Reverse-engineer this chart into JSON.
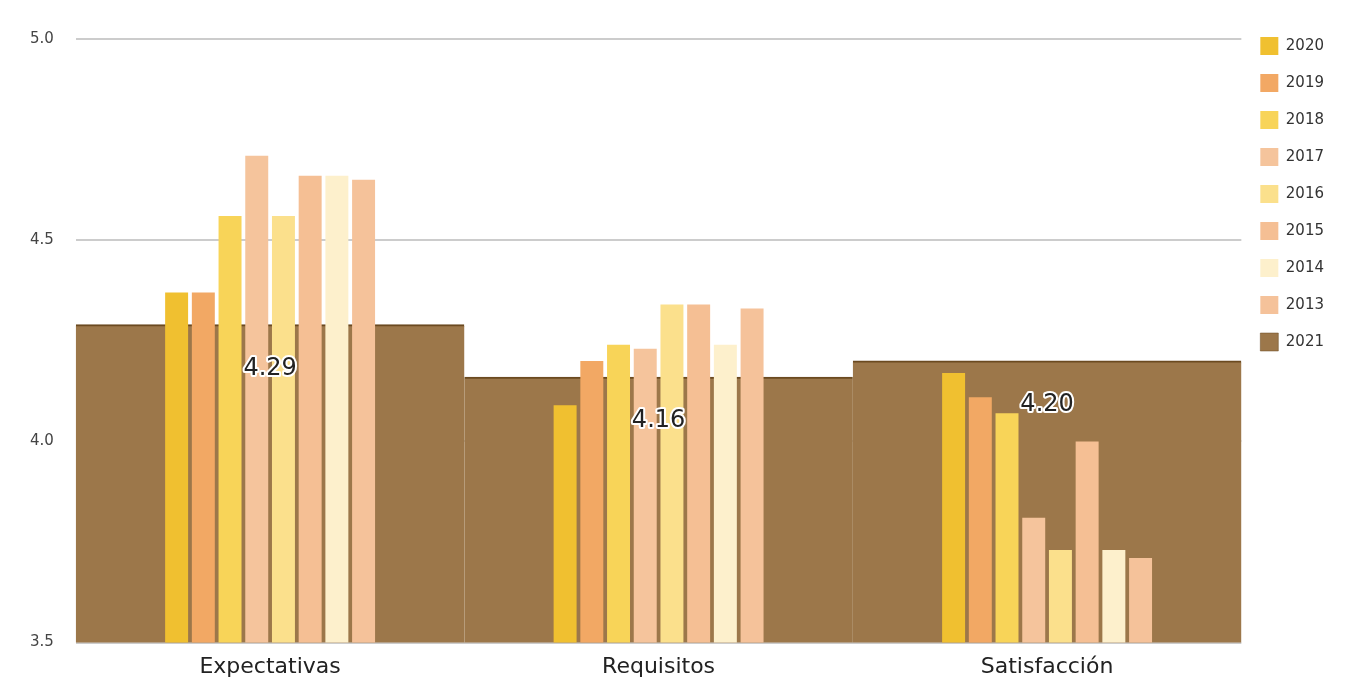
{
  "chart_data": {
    "type": "bar",
    "categories": [
      "Expectativas",
      "Requisitos",
      "Satisfacción"
    ],
    "series": [
      {
        "name": "2020",
        "color": "#f0c030",
        "values": [
          4.37,
          4.09,
          4.17
        ]
      },
      {
        "name": "2019",
        "color": "#f2a864",
        "values": [
          4.37,
          4.2,
          4.11
        ]
      },
      {
        "name": "2018",
        "color": "#f8d458",
        "values": [
          4.56,
          4.24,
          4.07
        ]
      },
      {
        "name": "2017",
        "color": "#f5c49c",
        "values": [
          4.71,
          4.23,
          3.81
        ]
      },
      {
        "name": "2016",
        "color": "#fbe08c",
        "values": [
          4.56,
          4.34,
          3.73
        ]
      },
      {
        "name": "2015",
        "color": "#f5bf94",
        "values": [
          4.66,
          4.34,
          4.0
        ]
      },
      {
        "name": "2014",
        "color": "#fdf0cc",
        "values": [
          4.66,
          4.24,
          3.73
        ]
      },
      {
        "name": "2013",
        "color": "#f5c29a",
        "values": [
          4.65,
          4.33,
          3.71
        ]
      },
      {
        "name": "2021",
        "color": "#9c774a",
        "values": [
          4.29,
          4.16,
          4.2
        ],
        "value_labels": [
          "4.29",
          "4.16",
          "4.20"
        ]
      }
    ],
    "ylim": [
      3.5,
      5.0
    ],
    "yticks": [
      3.5,
      {
        "value": 4,
        "label": "4.0"
      },
      {
        "value": 4.5,
        "label": "4.5"
      },
      {
        "value": 5,
        "label": "5.0"
      }
    ],
    "grid": "y",
    "legend": "right"
  }
}
